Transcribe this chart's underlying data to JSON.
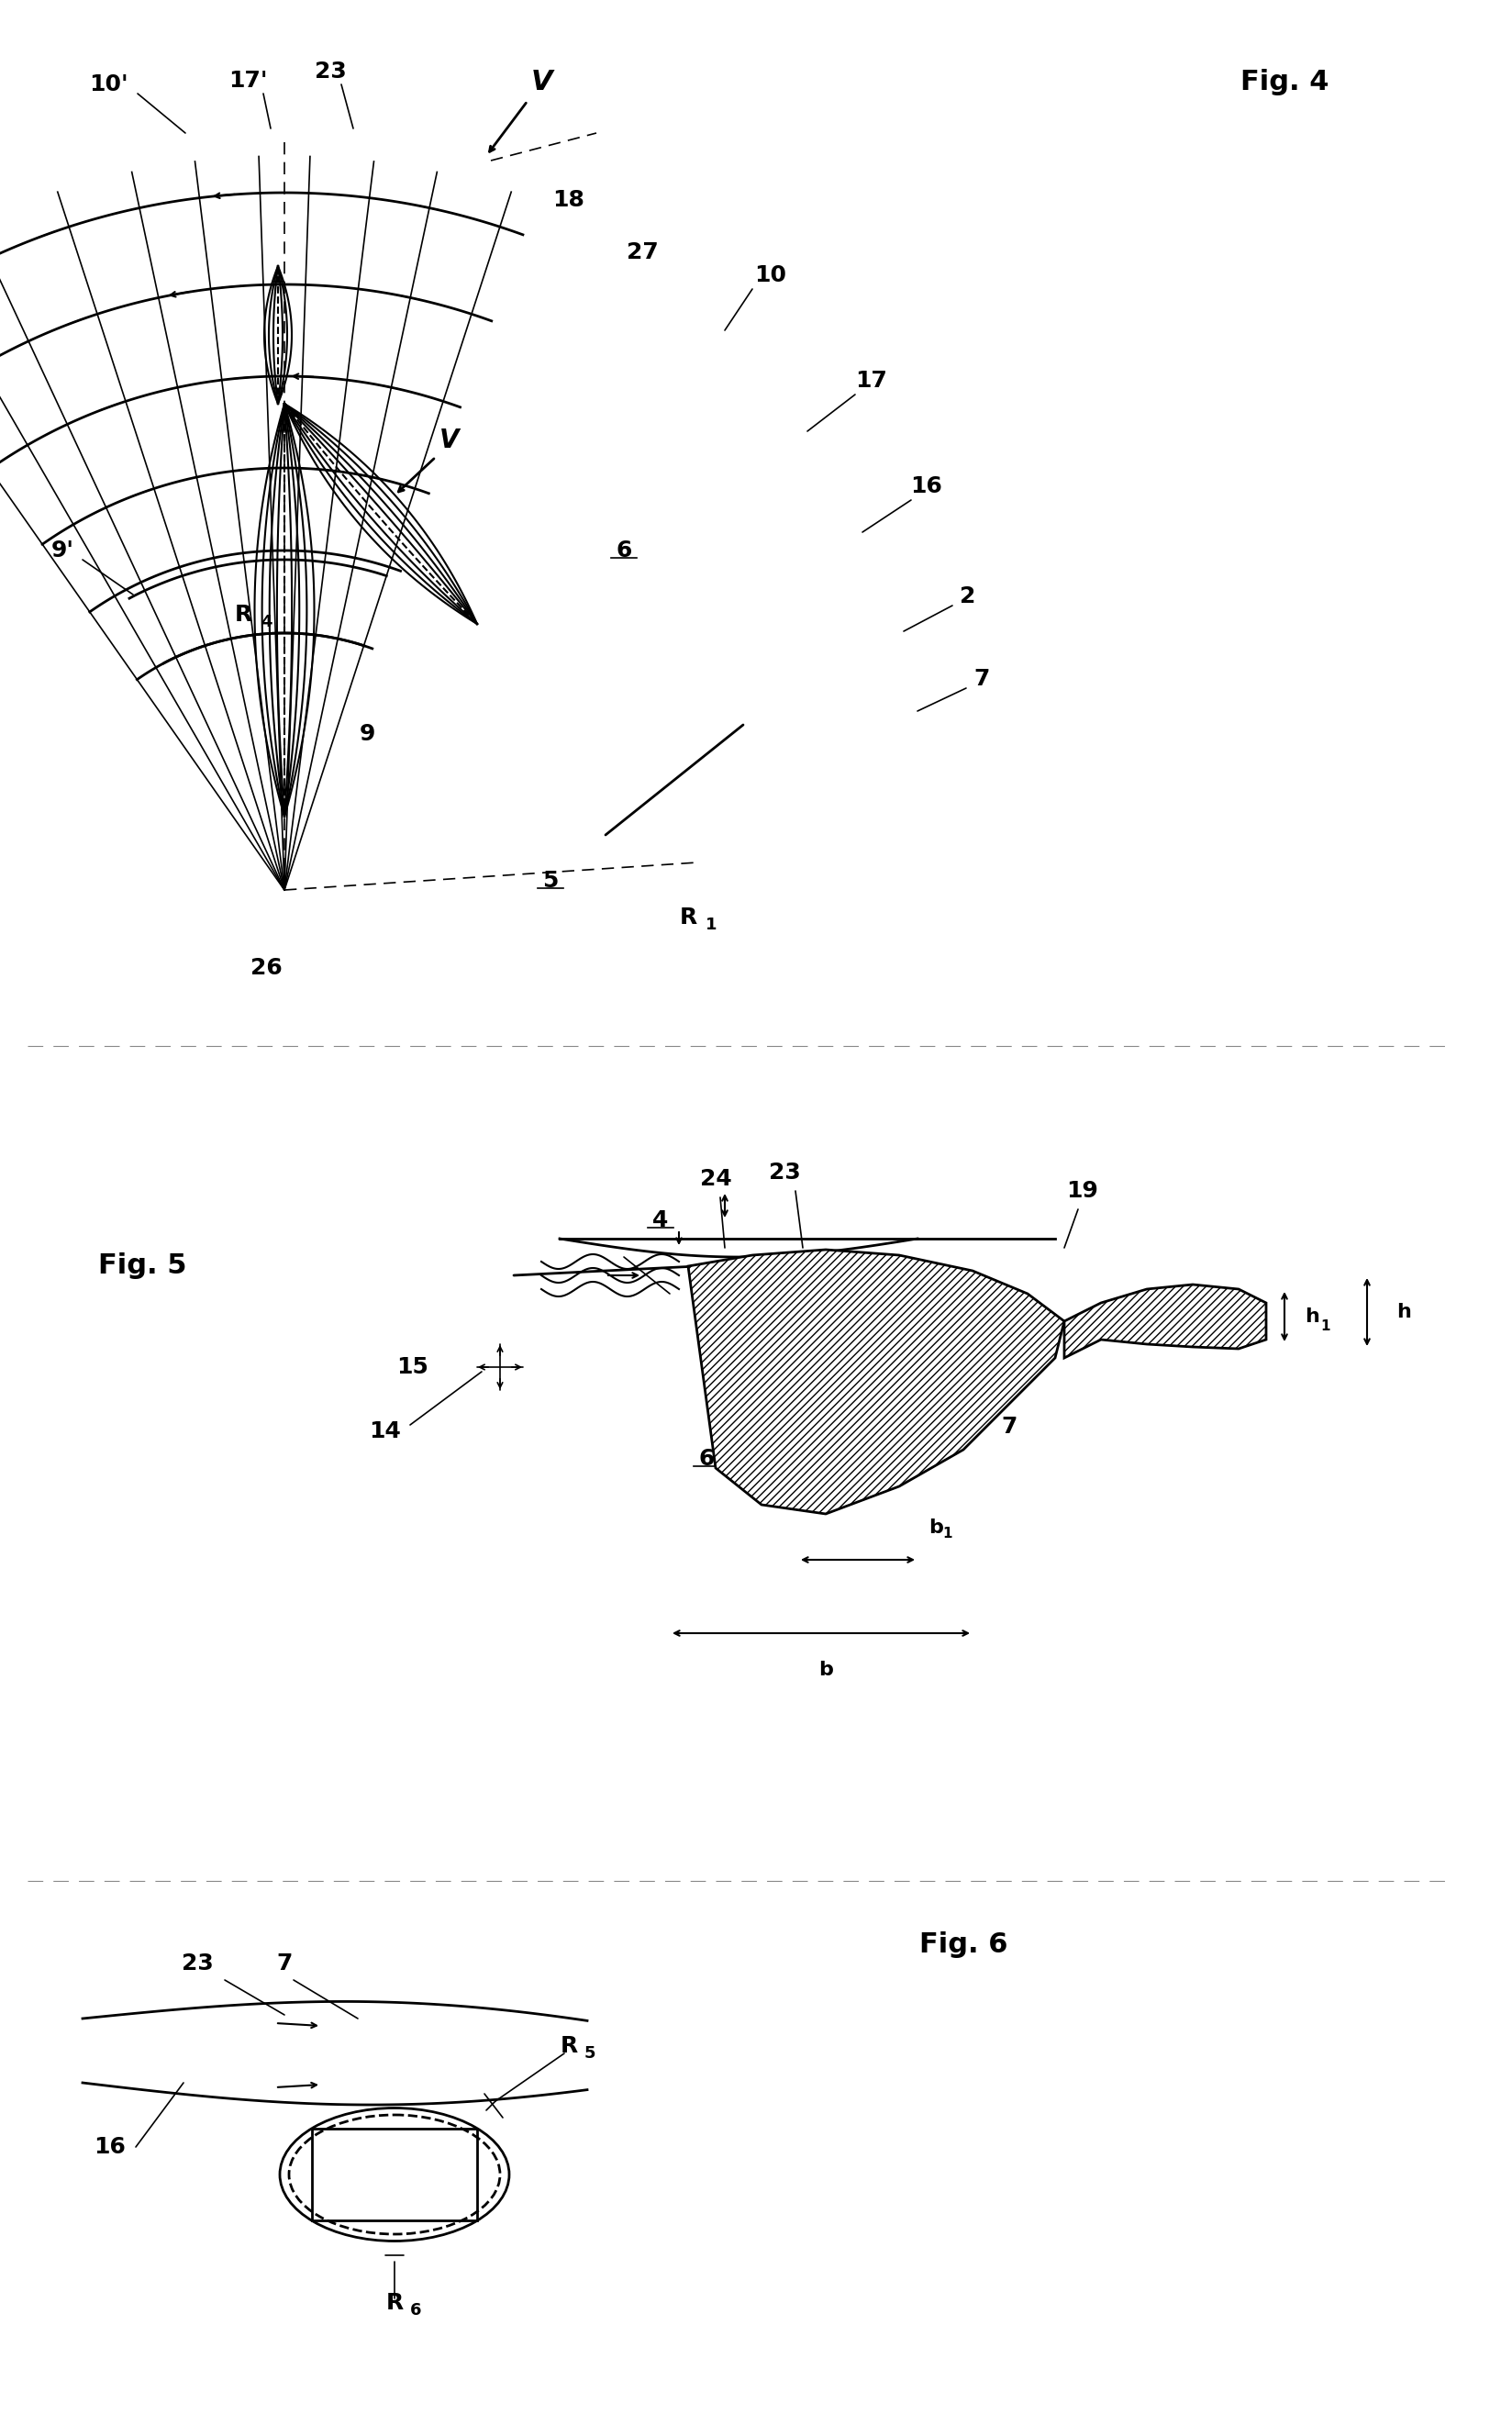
{
  "fig_width": 16.48,
  "fig_height": 26.43,
  "bg_color": "#ffffff",
  "line_color": "#000000",
  "fig4_label": "Fig. 4",
  "fig5_label": "Fig. 5",
  "fig6_label": "Fig. 6"
}
